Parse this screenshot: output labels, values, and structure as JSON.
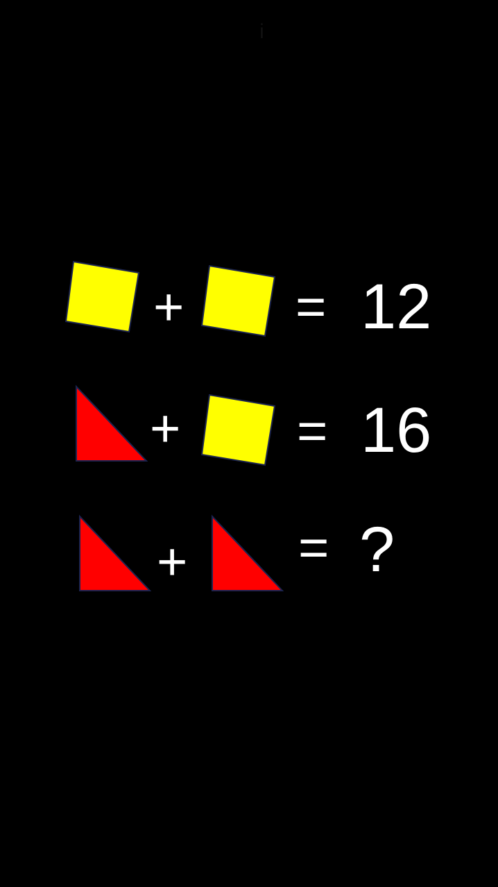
{
  "header": {
    "mark": "i"
  },
  "colors": {
    "background": "#000000",
    "square_fill": "#ffff00",
    "triangle_fill": "#ff0000",
    "shape_outline": "#1c2450",
    "text": "#ffffff"
  },
  "icons": {
    "square": "yellow-square-icon",
    "triangle": "red-triangle-icon"
  },
  "equations": [
    {
      "left": "square",
      "operator": "+",
      "right": "square",
      "equals": "=",
      "result": "12"
    },
    {
      "left": "triangle",
      "operator": "+",
      "right": "square",
      "equals": "=",
      "result": "16"
    },
    {
      "left": "triangle",
      "operator": "+",
      "right": "triangle",
      "equals": "=",
      "result": "?"
    }
  ]
}
